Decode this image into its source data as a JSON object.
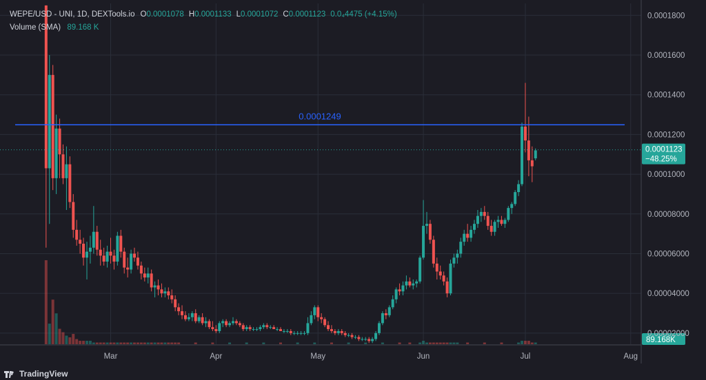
{
  "header": {
    "symbol": "WEPE/USD - UNI, 1D, DEXTools.io",
    "open_label": "O",
    "open": "0.0001078",
    "high_label": "H",
    "high": "0.0001133",
    "low_label": "L",
    "low": "0.0001072",
    "close_label": "C",
    "close": "0.0001123",
    "change": "0.0₄4475 (+4.15%)"
  },
  "volume_header": {
    "label": "Volume (SMA)",
    "value": "89.168 K"
  },
  "footer": {
    "brand": "TradingView"
  },
  "colors": {
    "up": "#26a69a",
    "down": "#ef5350",
    "hline": "#2962ff",
    "bg": "#1c1c24",
    "grid": "#2a2e39"
  },
  "chart_data": {
    "type": "candlestick",
    "y_ticks": [
      "0.0001800",
      "0.0001600",
      "0.0001400",
      "0.0001200",
      "0.0001000",
      "0.00008000",
      "0.00006000",
      "0.00004000",
      "0.00002000"
    ],
    "y_tick_values": [
      0.00018,
      0.00016,
      0.00014,
      0.00012,
      0.0001,
      8e-05,
      6e-05,
      4e-05,
      2e-05
    ],
    "ylim": [
      1.44e-05,
      0.000186
    ],
    "x_ticks": [
      "Mar",
      "Apr",
      "May",
      "Jun",
      "Jul",
      "Aug"
    ],
    "x_tick_days": [
      30,
      61,
      91,
      122,
      152,
      183
    ],
    "xlim": [
      0,
      189
    ],
    "horizontal_line": {
      "value": 0.0001249,
      "label": "0.0001249"
    },
    "last_price": {
      "value": 0.0001123,
      "label": "0.0001123",
      "change": "−48.25%"
    },
    "volume_label": "89.168K",
    "candles": [
      [
        11,
        0.000185,
        0.000185,
        6.3e-05,
        0.000103
      ],
      [
        12,
        0.000103,
        0.00016,
        7.5e-05,
        0.00015
      ],
      [
        13,
        0.00015,
        0.000155,
        9.2e-05,
        9.8e-05
      ],
      [
        14,
        9.8e-05,
        0.00013,
        9e-05,
        0.000123
      ],
      [
        15,
        0.000123,
        0.000128,
        9.8e-05,
        0.00011
      ],
      [
        16,
        0.00011,
        0.000115,
        9.5e-05,
        9.8e-05
      ],
      [
        17,
        9.8e-05,
        0.000114,
        8.2e-05,
        0.000105
      ],
      [
        18,
        0.000105,
        0.000109,
        8.3e-05,
        8.6e-05
      ],
      [
        19,
        8.6e-05,
        9e-05,
        6.8e-05,
        7.2e-05
      ],
      [
        20,
        7.2e-05,
        7.7e-05,
        6.4e-05,
        6.7e-05
      ],
      [
        21,
        6.7e-05,
        7.2e-05,
        6e-05,
        6.5e-05
      ],
      [
        22,
        6.5e-05,
        6.8e-05,
        5.4e-05,
        5.8e-05
      ],
      [
        23,
        5.8e-05,
        6.6e-05,
        4.7e-05,
        6.1e-05
      ],
      [
        24,
        6.1e-05,
        6.9e-05,
        5.5e-05,
        6.3e-05
      ],
      [
        25,
        6.3e-05,
        8.4e-05,
        6e-05,
        7.1e-05
      ],
      [
        26,
        7.1e-05,
        7.4e-05,
        5.9e-05,
        6.2e-05
      ],
      [
        27,
        6.2e-05,
        6.7e-05,
        5.4e-05,
        5.9e-05
      ],
      [
        28,
        5.9e-05,
        6.3e-05,
        5.4e-05,
        5.6e-05
      ],
      [
        29,
        5.6e-05,
        6.4e-05,
        5.3e-05,
        6.1e-05
      ],
      [
        30,
        6.1e-05,
        6.8e-05,
        5.5e-05,
        5.9e-05
      ],
      [
        31,
        5.9e-05,
        6.2e-05,
        5.2e-05,
        5.6e-05
      ],
      [
        32,
        5.6e-05,
        7.1e-05,
        5.4e-05,
        6.9e-05
      ],
      [
        33,
        6.9e-05,
        7.2e-05,
        5.8e-05,
        6.1e-05
      ],
      [
        34,
        6.1e-05,
        6.3e-05,
        5e-05,
        5.3e-05
      ],
      [
        35,
        5.3e-05,
        5.8e-05,
        4.8e-05,
        5.2e-05
      ],
      [
        36,
        5.2e-05,
        6.2e-05,
        5e-05,
        6e-05
      ],
      [
        37,
        6e-05,
        6.3e-05,
        5.6e-05,
        5.8e-05
      ],
      [
        38,
        5.8e-05,
        6.1e-05,
        5.2e-05,
        5.4e-05
      ],
      [
        39,
        5.4e-05,
        5.6e-05,
        4.7e-05,
        5e-05
      ],
      [
        40,
        5e-05,
        5.3e-05,
        4.6e-05,
        4.8e-05
      ],
      [
        41,
        4.8e-05,
        5.3e-05,
        4.5e-05,
        5e-05
      ],
      [
        42,
        5e-05,
        5.2e-05,
        4.1e-05,
        4.3e-05
      ],
      [
        43,
        4.3e-05,
        4.6e-05,
        3.8e-05,
        4.4e-05
      ],
      [
        44,
        4.4e-05,
        4.7e-05,
        3.9e-05,
        4.2e-05
      ],
      [
        45,
        4.2e-05,
        4.5e-05,
        3.8e-05,
        4e-05
      ],
      [
        46,
        4e-05,
        4.3e-05,
        3.8e-05,
        4.1e-05
      ],
      [
        47,
        4.1e-05,
        4.3e-05,
        3.7e-05,
        3.9e-05
      ],
      [
        48,
        3.9e-05,
        4.2e-05,
        3.5e-05,
        3.7e-05
      ],
      [
        49,
        3.7e-05,
        3.9e-05,
        3.1e-05,
        3.3e-05
      ],
      [
        50,
        3.3e-05,
        3.5e-05,
        2.9e-05,
        3.1e-05
      ],
      [
        51,
        3.1e-05,
        3.4e-05,
        2.7e-05,
        2.9e-05
      ],
      [
        52,
        2.9e-05,
        3.1e-05,
        2.6e-05,
        2.7e-05
      ],
      [
        53,
        2.7e-05,
        3e-05,
        2.6e-05,
        2.8e-05
      ],
      [
        54,
        2.8e-05,
        3.1e-05,
        2.6e-05,
        3e-05
      ],
      [
        55,
        3e-05,
        3.2e-05,
        2.5e-05,
        2.6e-05
      ],
      [
        56,
        2.6e-05,
        2.9e-05,
        2.5e-05,
        2.8e-05
      ],
      [
        57,
        2.8e-05,
        3e-05,
        2.4e-05,
        2.5e-05
      ],
      [
        58,
        2.5e-05,
        2.8e-05,
        2.3e-05,
        2.6e-05
      ],
      [
        59,
        2.6e-05,
        2.7e-05,
        2.2e-05,
        2.3e-05
      ],
      [
        60,
        2.3e-05,
        2.6e-05,
        2.1e-05,
        2.2e-05
      ],
      [
        61,
        2.2e-05,
        2.4e-05,
        2e-05,
        2.1e-05
      ],
      [
        62,
        2.1e-05,
        2.6e-05,
        2e-05,
        2.5e-05
      ],
      [
        63,
        2.5e-05,
        2.7e-05,
        2.3e-05,
        2.6e-05
      ],
      [
        64,
        2.6e-05,
        2.7e-05,
        2.3e-05,
        2.4e-05
      ],
      [
        65,
        2.4e-05,
        2.6e-05,
        2.3e-05,
        2.5e-05
      ],
      [
        66,
        2.5e-05,
        2.8e-05,
        2.4e-05,
        2.6e-05
      ],
      [
        67,
        2.6e-05,
        2.7e-05,
        2.4e-05,
        2.5e-05
      ],
      [
        68,
        2.5e-05,
        2.6e-05,
        2.3e-05,
        2.4e-05
      ],
      [
        69,
        2.4e-05,
        2.5e-05,
        2.1e-05,
        2.2e-05
      ],
      [
        70,
        2.2e-05,
        2.4e-05,
        2.1e-05,
        2.3e-05
      ],
      [
        71,
        2.3e-05,
        2.4e-05,
        2.1e-05,
        2.2e-05
      ],
      [
        72,
        2.2e-05,
        2.3e-05,
        2.1e-05,
        2.2e-05
      ],
      [
        73,
        2.2e-05,
        2.3e-05,
        2.1e-05,
        2.2e-05
      ],
      [
        74,
        2.2e-05,
        2.4e-05,
        2.1e-05,
        2.3e-05
      ],
      [
        75,
        2.3e-05,
        2.5e-05,
        2.2e-05,
        2.4e-05
      ],
      [
        76,
        2.4e-05,
        2.5e-05,
        2.2e-05,
        2.3e-05
      ],
      [
        77,
        2.3e-05,
        2.4e-05,
        2.2e-05,
        2.3e-05
      ],
      [
        78,
        2.3e-05,
        2.4e-05,
        2.2e-05,
        2.2e-05
      ],
      [
        79,
        2.2e-05,
        2.3e-05,
        2.1e-05,
        2.2e-05
      ],
      [
        80,
        2.2e-05,
        2.3e-05,
        2.1e-05,
        2.1e-05
      ],
      [
        81,
        2.1e-05,
        2.2e-05,
        2e-05,
        2.1e-05
      ],
      [
        82,
        2.1e-05,
        2.2e-05,
        2e-05,
        2.1e-05
      ],
      [
        83,
        2.1e-05,
        2.2e-05,
        1.9e-05,
        2e-05
      ],
      [
        84,
        2e-05,
        2.1e-05,
        1.9e-05,
        2e-05
      ],
      [
        85,
        2e-05,
        2.1e-05,
        1.9e-05,
        2e-05
      ],
      [
        86,
        2e-05,
        2.1e-05,
        1.9e-05,
        2e-05
      ],
      [
        87,
        2e-05,
        2.1e-05,
        1.9e-05,
        2e-05
      ],
      [
        88,
        2e-05,
        2.8e-05,
        1.9e-05,
        2.5e-05
      ],
      [
        89,
        2.5e-05,
        3.1e-05,
        2.4e-05,
        2.9e-05
      ],
      [
        90,
        2.9e-05,
        3.4e-05,
        2.7e-05,
        3.3e-05
      ],
      [
        91,
        3.3e-05,
        3.4e-05,
        2.6e-05,
        2.8e-05
      ],
      [
        92,
        2.8e-05,
        3e-05,
        2.5e-05,
        2.7e-05
      ],
      [
        93,
        2.7e-05,
        2.8e-05,
        2.3e-05,
        2.4e-05
      ],
      [
        94,
        2.4e-05,
        2.6e-05,
        2.1e-05,
        2.2e-05
      ],
      [
        95,
        2.2e-05,
        2.4e-05,
        2e-05,
        2.1e-05
      ],
      [
        96,
        2.1e-05,
        2.2e-05,
        1.9e-05,
        2e-05
      ],
      [
        97,
        2e-05,
        2.2e-05,
        1.9e-05,
        2.1e-05
      ],
      [
        98,
        2.1e-05,
        2.2e-05,
        1.9e-05,
        2e-05
      ],
      [
        99,
        2e-05,
        2.1e-05,
        1.8e-05,
        1.9e-05
      ],
      [
        100,
        1.9e-05,
        2e-05,
        1.8e-05,
        1.9e-05
      ],
      [
        101,
        1.9e-05,
        2e-05,
        1.7e-05,
        1.8e-05
      ],
      [
        102,
        1.8e-05,
        1.9e-05,
        1.7e-05,
        1.8e-05
      ],
      [
        103,
        1.8e-05,
        1.9e-05,
        1.6e-05,
        1.7e-05
      ],
      [
        104,
        1.7e-05,
        1.8e-05,
        1.6e-05,
        1.7e-05
      ],
      [
        105,
        1.7e-05,
        1.8e-05,
        1.6e-05,
        1.7e-05
      ],
      [
        106,
        1.7e-05,
        1.8e-05,
        1.5e-05,
        1.6e-05
      ],
      [
        107,
        1.6e-05,
        1.8e-05,
        1.5e-05,
        1.7e-05
      ],
      [
        108,
        1.7e-05,
        2.1e-05,
        1.6e-05,
        2e-05
      ],
      [
        109,
        2e-05,
        2.6e-05,
        1.9e-05,
        2.5e-05
      ],
      [
        110,
        2.5e-05,
        3.1e-05,
        2.4e-05,
        3e-05
      ],
      [
        111,
        3e-05,
        3.2e-05,
        2.7e-05,
        2.9e-05
      ],
      [
        112,
        2.9e-05,
        3.4e-05,
        2.8e-05,
        3.3e-05
      ],
      [
        113,
        3.3e-05,
        3.9e-05,
        3.2e-05,
        3.7e-05
      ],
      [
        114,
        3.7e-05,
        4.3e-05,
        3.5e-05,
        4.2e-05
      ],
      [
        115,
        4.2e-05,
        4.5e-05,
        3.9e-05,
        4.1e-05
      ],
      [
        116,
        4.1e-05,
        4.6e-05,
        3.9e-05,
        4.4e-05
      ],
      [
        117,
        4.4e-05,
        4.9e-05,
        4.2e-05,
        4.6e-05
      ],
      [
        118,
        4.6e-05,
        4.8e-05,
        4.3e-05,
        4.4e-05
      ],
      [
        119,
        4.4e-05,
        4.7e-05,
        4.2e-05,
        4.5e-05
      ],
      [
        120,
        4.5e-05,
        4.7e-05,
        4.3e-05,
        4.6e-05
      ],
      [
        121,
        4.6e-05,
        5.9e-05,
        4.5e-05,
        5.8e-05
      ],
      [
        122,
        5.8e-05,
        8.7e-05,
        5.7e-05,
        7.4e-05
      ],
      [
        123,
        7.4e-05,
        8.1e-05,
        7e-05,
        7.5e-05
      ],
      [
        124,
        7.5e-05,
        7.7e-05,
        6.5e-05,
        6.7e-05
      ],
      [
        125,
        6.7e-05,
        6.9e-05,
        5.3e-05,
        5.5e-05
      ],
      [
        126,
        5.5e-05,
        5.8e-05,
        4.7e-05,
        5.1e-05
      ],
      [
        127,
        5.1e-05,
        5.4e-05,
        4.7e-05,
        4.9e-05
      ],
      [
        128,
        4.9e-05,
        5.1e-05,
        4.4e-05,
        4.6e-05
      ],
      [
        129,
        4.6e-05,
        4.8e-05,
        3.8e-05,
        4e-05
      ],
      [
        130,
        4e-05,
        5.7e-05,
        3.9e-05,
        5.5e-05
      ],
      [
        131,
        5.5e-05,
        6e-05,
        5.3e-05,
        5.8e-05
      ],
      [
        132,
        5.8e-05,
        6.2e-05,
        5.5e-05,
        6e-05
      ],
      [
        133,
        6e-05,
        6.8e-05,
        5.8e-05,
        6.6e-05
      ],
      [
        134,
        6.6e-05,
        7.2e-05,
        6.4e-05,
        7e-05
      ],
      [
        135,
        7e-05,
        7.5e-05,
        6.6e-05,
        6.8e-05
      ],
      [
        136,
        6.8e-05,
        7.4e-05,
        6.6e-05,
        7.2e-05
      ],
      [
        137,
        7.2e-05,
        7.7e-05,
        7e-05,
        7.5e-05
      ],
      [
        138,
        7.5e-05,
        8.2e-05,
        7.3e-05,
        7.9e-05
      ],
      [
        139,
        7.9e-05,
        8.3e-05,
        7.6e-05,
        8.1e-05
      ],
      [
        140,
        8.1e-05,
        8.4e-05,
        7.7e-05,
        7.9e-05
      ],
      [
        141,
        7.9e-05,
        8.1e-05,
        7.2e-05,
        7.4e-05
      ],
      [
        142,
        7.4e-05,
        7.7e-05,
        6.9e-05,
        7.1e-05
      ],
      [
        143,
        7.1e-05,
        7.7e-05,
        6.9e-05,
        7.6e-05
      ],
      [
        144,
        7.6e-05,
        7.9e-05,
        7.3e-05,
        7.7e-05
      ],
      [
        145,
        7.7e-05,
        7.9e-05,
        7.4e-05,
        7.5e-05
      ],
      [
        146,
        7.5e-05,
        7.8e-05,
        7.3e-05,
        7.7e-05
      ],
      [
        147,
        7.7e-05,
        8.4e-05,
        7.6e-05,
        8.3e-05
      ],
      [
        148,
        8.3e-05,
        8.6e-05,
        8e-05,
        8.5e-05
      ],
      [
        149,
        8.5e-05,
        9.2e-05,
        8.4e-05,
        9.1e-05
      ],
      [
        150,
        9.1e-05,
        9.7e-05,
        8.9e-05,
        9.5e-05
      ],
      [
        151,
        9.5e-05,
        0.000126,
        9.4e-05,
        0.000124
      ],
      [
        152,
        0.000124,
        0.000146,
        0.000111,
        0.000117
      ],
      [
        153,
        0.000117,
        0.000129,
        9.9e-05,
        0.000107
      ],
      [
        154,
        0.000107,
        0.000114,
        9.6e-05,
        0.000104
      ],
      [
        155,
        0.000108,
        0.000113,
        0.000107,
        0.000112
      ]
    ],
    "volume": [
      [
        11,
        49
      ],
      [
        12,
        12
      ],
      [
        13,
        26
      ],
      [
        14,
        18
      ],
      [
        15,
        9
      ],
      [
        16,
        7
      ],
      [
        17,
        5
      ],
      [
        18,
        4
      ],
      [
        19,
        6
      ],
      [
        20,
        3
      ],
      [
        21,
        2
      ],
      [
        22,
        2
      ],
      [
        23,
        2
      ],
      [
        24,
        2
      ],
      [
        25,
        1
      ],
      [
        26,
        1
      ],
      [
        27,
        1
      ],
      [
        28,
        1
      ],
      [
        29,
        1
      ],
      [
        30,
        1
      ],
      [
        31,
        1
      ],
      [
        32,
        1
      ],
      [
        33,
        1
      ],
      [
        34,
        1
      ],
      [
        35,
        1
      ],
      [
        36,
        1
      ],
      [
        37,
        1
      ],
      [
        38,
        1
      ],
      [
        39,
        1
      ],
      [
        40,
        1
      ],
      [
        41,
        1
      ],
      [
        42,
        1
      ],
      [
        43,
        1
      ],
      [
        44,
        1
      ],
      [
        45,
        1
      ],
      [
        46,
        1
      ],
      [
        47,
        1
      ],
      [
        48,
        1
      ],
      [
        49,
        1
      ],
      [
        50,
        1
      ],
      [
        55,
        1
      ],
      [
        60,
        1
      ],
      [
        65,
        1
      ],
      [
        70,
        1
      ],
      [
        75,
        1
      ],
      [
        80,
        1
      ],
      [
        85,
        1
      ],
      [
        90,
        1
      ],
      [
        95,
        1
      ],
      [
        100,
        1
      ],
      [
        105,
        1
      ],
      [
        110,
        1
      ],
      [
        115,
        1
      ],
      [
        118,
        1
      ],
      [
        121,
        1
      ],
      [
        122,
        2
      ],
      [
        123,
        1
      ],
      [
        124,
        1
      ],
      [
        125,
        1
      ],
      [
        126,
        1
      ],
      [
        127,
        1
      ],
      [
        128,
        1
      ],
      [
        129,
        1
      ],
      [
        130,
        1
      ],
      [
        131,
        1
      ],
      [
        132,
        1
      ],
      [
        135,
        1
      ],
      [
        140,
        1
      ],
      [
        145,
        1
      ],
      [
        150,
        1
      ],
      [
        151,
        2
      ],
      [
        152,
        2
      ],
      [
        153,
        2
      ],
      [
        154,
        1
      ],
      [
        155,
        1
      ]
    ]
  }
}
